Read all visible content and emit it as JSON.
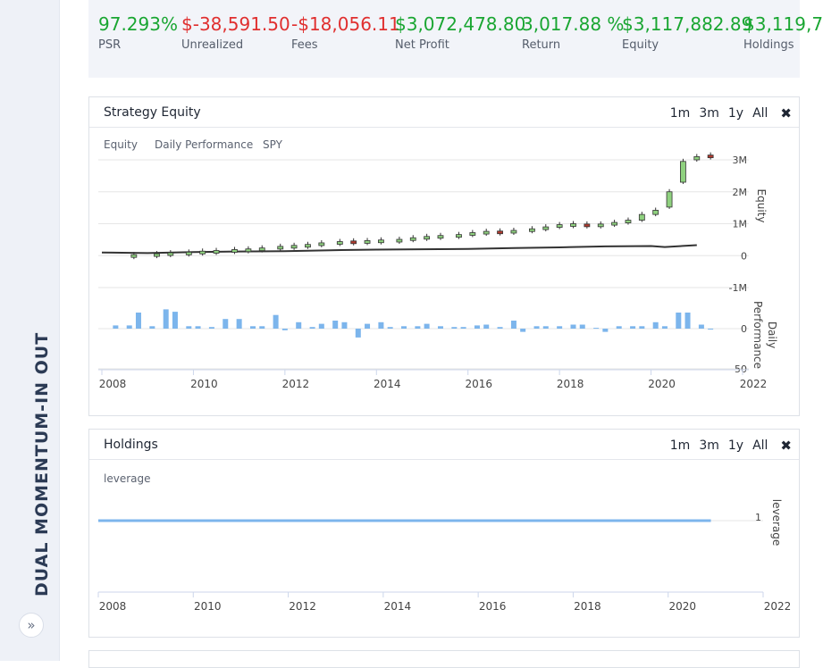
{
  "sidebar": {
    "title": "DUAL MOMENTUM-IN OUT",
    "expand_icon": "double-chevron-right-icon"
  },
  "stats": [
    {
      "value": "97.293%",
      "label": "PSR",
      "tone": "pos"
    },
    {
      "value": "$-38,591.50",
      "label": "Unrealized",
      "tone": "neg"
    },
    {
      "value": "-$18,056.11",
      "label": "Fees",
      "tone": "neg"
    },
    {
      "value": "$3,072,478.80",
      "label": "Net Profit",
      "tone": "pos"
    },
    {
      "value": "3,017.88 %",
      "label": "Return",
      "tone": "pos"
    },
    {
      "value": "$3,117,882.89",
      "label": "Equity",
      "tone": "pos"
    },
    {
      "value": "$3,119,7",
      "label": "Holdings",
      "tone": "pos"
    }
  ],
  "colors": {
    "positive": "#1aa632",
    "negative": "#e02f2f",
    "candle_up": "#8fd17f",
    "candle_down": "#b03a2e",
    "bar": "#7cb5ec",
    "spy_line": "#333333",
    "leverage_line": "#7cb5ec"
  },
  "equity_panel": {
    "title": "Strategy Equity",
    "ranges": [
      "1m",
      "3m",
      "1y",
      "All"
    ],
    "close_icon": "close-icon",
    "legend": [
      "Equity",
      "Daily Performance",
      "SPY"
    ]
  },
  "holdings_panel": {
    "title": "Holdings",
    "ranges": [
      "1m",
      "3m",
      "1y",
      "All"
    ],
    "close_icon": "close-icon",
    "legend": [
      "leverage"
    ]
  },
  "chart_data": [
    {
      "type": "line",
      "name": "Strategy Equity",
      "x_ticks": [
        "2008",
        "2010",
        "2012",
        "2014",
        "2016",
        "2018",
        "2020",
        "2022"
      ],
      "xlim": [
        2008,
        2022
      ],
      "equity_axis": {
        "label": "Equity",
        "ticks": [
          "3M",
          "2M",
          "1M",
          "0",
          "-1M"
        ],
        "ylim": [
          -1000000,
          3000000
        ]
      },
      "daily_axis": {
        "label": "Daily Performance",
        "ticks": [
          "0",
          "-50"
        ],
        "ylim": [
          -50,
          50
        ]
      },
      "series": [
        {
          "name": "Equity",
          "kind": "candlestick",
          "points": [
            {
              "x": 2008.7,
              "o": 20000,
              "c": 30000
            },
            {
              "x": 2009.2,
              "o": 30000,
              "c": 60000
            },
            {
              "x": 2009.5,
              "o": 60000,
              "c": 90000
            },
            {
              "x": 2009.9,
              "o": 90000,
              "c": 110000
            },
            {
              "x": 2010.2,
              "o": 110000,
              "c": 140000
            },
            {
              "x": 2010.5,
              "o": 140000,
              "c": 160000
            },
            {
              "x": 2010.9,
              "o": 160000,
              "c": 190000
            },
            {
              "x": 2011.2,
              "o": 190000,
              "c": 210000
            },
            {
              "x": 2011.5,
              "o": 210000,
              "c": 240000
            },
            {
              "x": 2011.9,
              "o": 240000,
              "c": 290000
            },
            {
              "x": 2012.2,
              "o": 290000,
              "c": 320000
            },
            {
              "x": 2012.5,
              "o": 320000,
              "c": 350000
            },
            {
              "x": 2012.8,
              "o": 350000,
              "c": 400000
            },
            {
              "x": 2013.2,
              "o": 400000,
              "c": 440000
            },
            {
              "x": 2013.5,
              "o": 460000,
              "c": 430000
            },
            {
              "x": 2013.8,
              "o": 430000,
              "c": 470000
            },
            {
              "x": 2014.1,
              "o": 470000,
              "c": 490000
            },
            {
              "x": 2014.5,
              "o": 490000,
              "c": 510000
            },
            {
              "x": 2014.8,
              "o": 510000,
              "c": 560000
            },
            {
              "x": 2015.1,
              "o": 560000,
              "c": 600000
            },
            {
              "x": 2015.4,
              "o": 600000,
              "c": 630000
            },
            {
              "x": 2015.8,
              "o": 630000,
              "c": 660000
            },
            {
              "x": 2016.1,
              "o": 660000,
              "c": 720000
            },
            {
              "x": 2016.4,
              "o": 720000,
              "c": 760000
            },
            {
              "x": 2016.7,
              "o": 770000,
              "c": 750000
            },
            {
              "x": 2017.0,
              "o": 750000,
              "c": 790000
            },
            {
              "x": 2017.4,
              "o": 790000,
              "c": 840000
            },
            {
              "x": 2017.7,
              "o": 840000,
              "c": 900000
            },
            {
              "x": 2018.0,
              "o": 900000,
              "c": 970000
            },
            {
              "x": 2018.3,
              "o": 970000,
              "c": 1000000
            },
            {
              "x": 2018.6,
              "o": 990000,
              "c": 960000
            },
            {
              "x": 2018.9,
              "o": 960000,
              "c": 990000
            },
            {
              "x": 2019.2,
              "o": 990000,
              "c": 1040000
            },
            {
              "x": 2019.5,
              "o": 1040000,
              "c": 1110000
            },
            {
              "x": 2019.8,
              "o": 1110000,
              "c": 1290000
            },
            {
              "x": 2020.1,
              "o": 1290000,
              "c": 1420000
            },
            {
              "x": 2020.4,
              "o": 1520000,
              "c": 2000000
            },
            {
              "x": 2020.7,
              "o": 2300000,
              "c": 2950000
            },
            {
              "x": 2021.0,
              "o": 3000000,
              "c": 3100000
            },
            {
              "x": 2021.3,
              "o": 3150000,
              "c": 3090000
            }
          ]
        },
        {
          "name": "SPY",
          "kind": "line",
          "points": [
            [
              2008,
              100000
            ],
            [
              2009,
              80000
            ],
            [
              2010,
              110000
            ],
            [
              2011,
              130000
            ],
            [
              2012,
              140000
            ],
            [
              2013,
              170000
            ],
            [
              2014,
              190000
            ],
            [
              2015,
              200000
            ],
            [
              2016,
              210000
            ],
            [
              2017,
              240000
            ],
            [
              2018,
              260000
            ],
            [
              2019,
              290000
            ],
            [
              2020,
              300000
            ],
            [
              2020.3,
              270000
            ],
            [
              2021,
              330000
            ]
          ]
        },
        {
          "name": "Daily Performance",
          "kind": "bar",
          "points": [
            [
              2008.3,
              4
            ],
            [
              2008.6,
              4
            ],
            [
              2008.8,
              20
            ],
            [
              2009.1,
              3
            ],
            [
              2009.4,
              24
            ],
            [
              2009.6,
              21
            ],
            [
              2009.9,
              3
            ],
            [
              2010.1,
              3
            ],
            [
              2010.4,
              2
            ],
            [
              2010.7,
              12
            ],
            [
              2011.0,
              12
            ],
            [
              2011.3,
              3
            ],
            [
              2011.5,
              3
            ],
            [
              2011.8,
              17
            ],
            [
              2012.0,
              -2
            ],
            [
              2012.3,
              8
            ],
            [
              2012.6,
              2
            ],
            [
              2012.8,
              6
            ],
            [
              2013.1,
              10
            ],
            [
              2013.3,
              8
            ],
            [
              2013.6,
              -11
            ],
            [
              2013.8,
              6
            ],
            [
              2014.1,
              8
            ],
            [
              2014.3,
              2
            ],
            [
              2014.6,
              3
            ],
            [
              2014.9,
              3
            ],
            [
              2015.1,
              6
            ],
            [
              2015.4,
              3
            ],
            [
              2015.7,
              2
            ],
            [
              2015.9,
              2
            ],
            [
              2016.2,
              4
            ],
            [
              2016.4,
              5
            ],
            [
              2016.7,
              2
            ],
            [
              2017.0,
              10
            ],
            [
              2017.2,
              -4
            ],
            [
              2017.5,
              3
            ],
            [
              2017.7,
              3
            ],
            [
              2018.0,
              3
            ],
            [
              2018.3,
              5
            ],
            [
              2018.5,
              5
            ],
            [
              2018.8,
              1
            ],
            [
              2019.0,
              -4
            ],
            [
              2019.3,
              3
            ],
            [
              2019.6,
              3
            ],
            [
              2019.8,
              3
            ],
            [
              2020.1,
              8
            ],
            [
              2020.3,
              3
            ],
            [
              2020.6,
              20
            ],
            [
              2020.8,
              20
            ],
            [
              2021.1,
              5
            ],
            [
              2021.3,
              -1
            ]
          ]
        }
      ]
    },
    {
      "type": "line",
      "name": "Holdings",
      "x_ticks": [
        "2008",
        "2010",
        "2012",
        "2014",
        "2016",
        "2018",
        "2020",
        "2022"
      ],
      "xlim": [
        2008,
        2022
      ],
      "y_axis": {
        "label": "leverage",
        "ticks": [
          "1"
        ],
        "ylim": [
          0,
          1.6
        ]
      },
      "series": [
        {
          "name": "leverage",
          "points": [
            [
              2008,
              1
            ],
            [
              2020.9,
              1
            ]
          ]
        }
      ]
    }
  ]
}
